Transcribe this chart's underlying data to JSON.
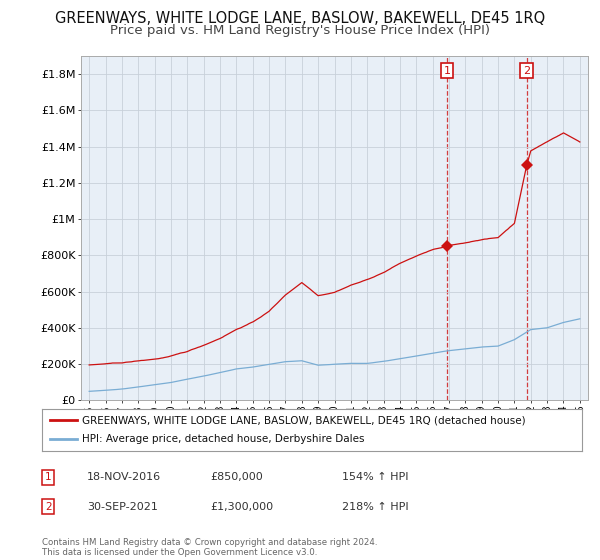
{
  "title": "GREENWAYS, WHITE LODGE LANE, BASLOW, BAKEWELL, DE45 1RQ",
  "subtitle": "Price paid vs. HM Land Registry's House Price Index (HPI)",
  "title_fontsize": 10.5,
  "subtitle_fontsize": 9.5,
  "ylim": [
    0,
    1900000
  ],
  "yticks": [
    0,
    200000,
    400000,
    600000,
    800000,
    1000000,
    1200000,
    1400000,
    1600000,
    1800000
  ],
  "ytick_labels": [
    "£0",
    "£200K",
    "£400K",
    "£600K",
    "£800K",
    "£1M",
    "£1.2M",
    "£1.4M",
    "£1.6M",
    "£1.8M"
  ],
  "x_start_year": 1995,
  "x_end_year": 2025,
  "hpi_color": "#7aadd4",
  "property_color": "#cc1111",
  "chart_bg_color": "#e8eff7",
  "sale1_year": 2016.88,
  "sale1_value": 850000,
  "sale2_year": 2021.75,
  "sale2_value": 1300000,
  "legend_entries": [
    "GREENWAYS, WHITE LODGE LANE, BASLOW, BAKEWELL, DE45 1RQ (detached house)",
    "HPI: Average price, detached house, Derbyshire Dales"
  ],
  "annotation1_label": "1",
  "annotation1_date": "18-NOV-2016",
  "annotation1_price": "£850,000",
  "annotation1_hpi": "154% ↑ HPI",
  "annotation2_label": "2",
  "annotation2_date": "30-SEP-2021",
  "annotation2_price": "£1,300,000",
  "annotation2_hpi": "218% ↑ HPI",
  "footer": "Contains HM Land Registry data © Crown copyright and database right 2024.\nThis data is licensed under the Open Government Licence v3.0.",
  "grid_color": "#c8d0da",
  "bg_color": "#ffffff"
}
